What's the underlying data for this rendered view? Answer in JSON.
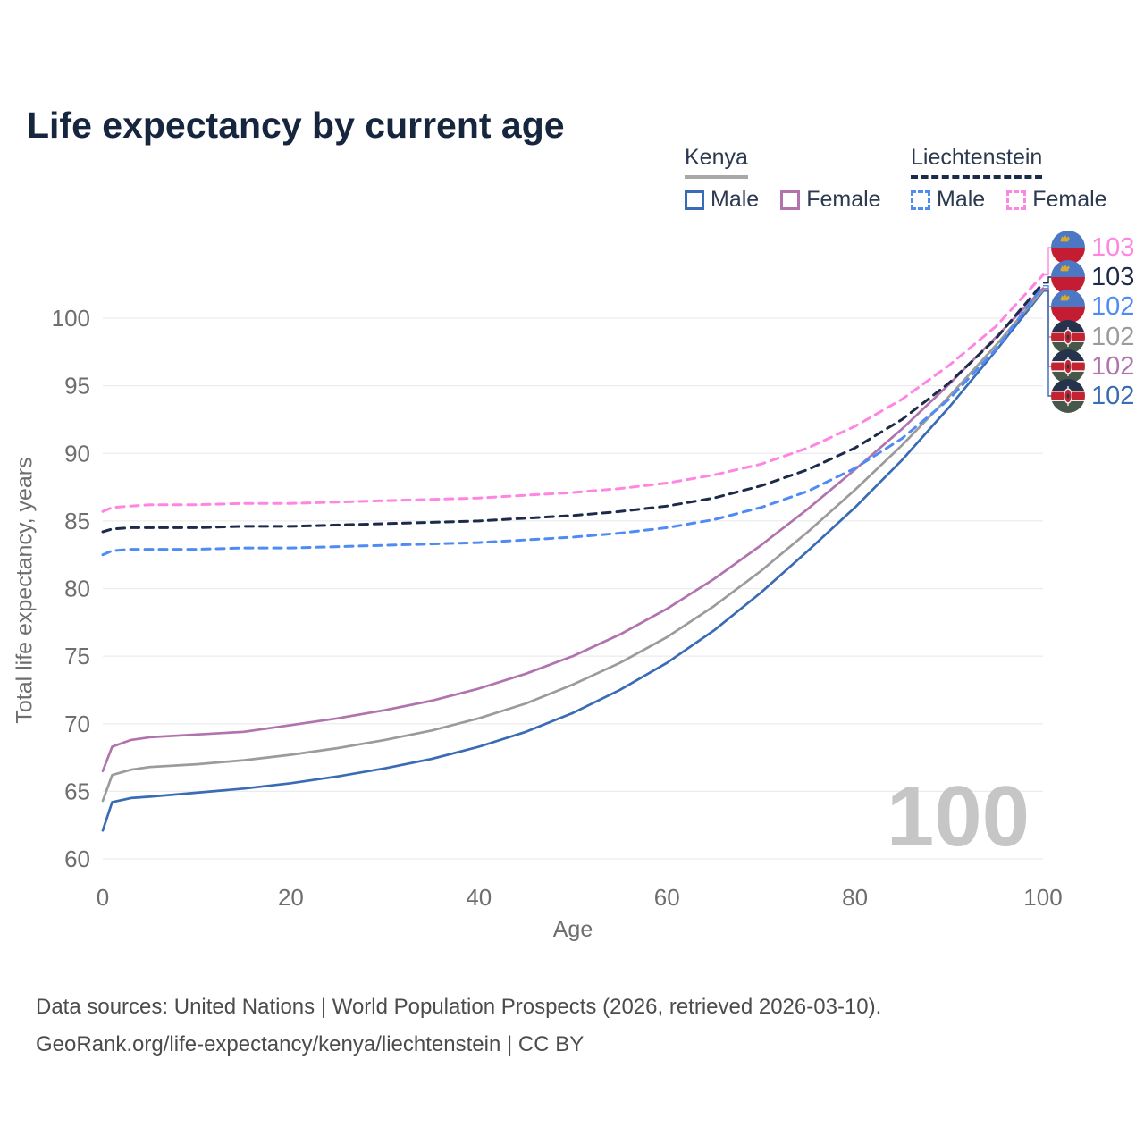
{
  "title": "Life expectancy by current age",
  "legend": {
    "groups": [
      {
        "label": "Kenya",
        "line_style": "solid",
        "underline_color": "#a8a8a8",
        "items": [
          {
            "label": "Male",
            "color": "#3a6bb5"
          },
          {
            "label": "Female",
            "color": "#b173ae"
          }
        ]
      },
      {
        "label": "Liechtenstein",
        "line_style": "dashed",
        "underline_color": "#1c2b4a",
        "items": [
          {
            "label": "Male",
            "color": "#4f8bf5"
          },
          {
            "label": "Female",
            "color": "#ff85e2"
          }
        ]
      }
    ]
  },
  "watermark": "100",
  "footer": {
    "line1": "Data sources: United Nations | World Population Prospects (2026, retrieved 2026-03-10).",
    "line2": "GeoRank.org/life-expectancy/kenya/liechtenstein | CC BY"
  },
  "colors": {
    "title": "#16263f",
    "grid": "#ececec",
    "axis_text": "#6e6e6e",
    "watermark": "#c6c6c6"
  },
  "chart_data": {
    "type": "line",
    "title": "Life expectancy by current age",
    "xlabel": "Age",
    "ylabel": "Total life expectancy, years",
    "xlim": [
      0,
      100
    ],
    "ylim": [
      60,
      103.5
    ],
    "xticks": [
      0,
      20,
      40,
      60,
      80,
      100
    ],
    "yticks": [
      60,
      65,
      70,
      75,
      80,
      85,
      90,
      95,
      100
    ],
    "grid": "horizontal",
    "legend_position": "top-right",
    "x": [
      0,
      1,
      3,
      5,
      10,
      15,
      20,
      25,
      30,
      35,
      40,
      45,
      50,
      55,
      60,
      65,
      70,
      75,
      80,
      85,
      90,
      95,
      100
    ],
    "series": [
      {
        "name": "Kenya Male",
        "country": "kenya",
        "sex": "male",
        "color": "#3a6bb5",
        "dash": false,
        "values": [
          62.1,
          64.2,
          64.5,
          64.6,
          64.9,
          65.2,
          65.6,
          66.1,
          66.7,
          67.4,
          68.3,
          69.4,
          70.8,
          72.5,
          74.5,
          76.9,
          79.7,
          82.8,
          86.0,
          89.5,
          93.4,
          97.6,
          102.0
        ]
      },
      {
        "name": "Kenya Both sexes",
        "country": "kenya",
        "sex": "both",
        "color": "#9b9b9b",
        "dash": false,
        "values": [
          64.3,
          66.2,
          66.6,
          66.8,
          67.0,
          67.3,
          67.7,
          68.2,
          68.8,
          69.5,
          70.4,
          71.5,
          72.9,
          74.5,
          76.4,
          78.7,
          81.3,
          84.2,
          87.3,
          90.6,
          94.2,
          98.0,
          102.1
        ]
      },
      {
        "name": "Kenya Female",
        "country": "kenya",
        "sex": "female",
        "color": "#b173ae",
        "dash": false,
        "values": [
          66.5,
          68.3,
          68.8,
          69.0,
          69.2,
          69.4,
          69.9,
          70.4,
          71.0,
          71.7,
          72.6,
          73.7,
          75.0,
          76.6,
          78.5,
          80.7,
          83.2,
          85.9,
          88.8,
          91.8,
          95.1,
          98.6,
          102.2
        ]
      },
      {
        "name": "Liechtenstein Male",
        "country": "liechtenstein",
        "sex": "male",
        "color": "#4f8bf5",
        "dash": true,
        "values": [
          82.5,
          82.8,
          82.9,
          82.9,
          82.9,
          83.0,
          83.0,
          83.1,
          83.2,
          83.3,
          83.4,
          83.6,
          83.8,
          84.1,
          84.5,
          85.1,
          86.0,
          87.2,
          88.9,
          91.1,
          94.0,
          97.7,
          102.4
        ]
      },
      {
        "name": "Liechtenstein Both sexes",
        "country": "liechtenstein",
        "sex": "both",
        "color": "#1c2b4a",
        "dash": true,
        "values": [
          84.2,
          84.4,
          84.5,
          84.5,
          84.5,
          84.6,
          84.6,
          84.7,
          84.8,
          84.9,
          85.0,
          85.2,
          85.4,
          85.7,
          86.1,
          86.7,
          87.6,
          88.8,
          90.4,
          92.5,
          95.2,
          98.5,
          102.6
        ]
      },
      {
        "name": "Liechtenstein Female",
        "country": "liechtenstein",
        "sex": "female",
        "color": "#ff85e2",
        "dash": true,
        "values": [
          85.7,
          86.0,
          86.1,
          86.2,
          86.2,
          86.3,
          86.3,
          86.4,
          86.5,
          86.6,
          86.7,
          86.9,
          87.1,
          87.4,
          87.8,
          88.4,
          89.2,
          90.4,
          92.0,
          94.0,
          96.5,
          99.4,
          103.2
        ]
      }
    ],
    "end_labels": [
      {
        "series": "Liechtenstein Female",
        "value": "103",
        "color": "#ff85e2",
        "flag": "liechtenstein"
      },
      {
        "series": "Liechtenstein Both sexes",
        "value": "103",
        "color": "#1c2b4a",
        "flag": "liechtenstein"
      },
      {
        "series": "Liechtenstein Male",
        "value": "102",
        "color": "#4f8bf5",
        "flag": "liechtenstein"
      },
      {
        "series": "Kenya Both sexes",
        "value": "102",
        "color": "#9b9b9b",
        "flag": "kenya"
      },
      {
        "series": "Kenya Female",
        "value": "102",
        "color": "#b173ae",
        "flag": "kenya"
      },
      {
        "series": "Kenya Male",
        "value": "102",
        "color": "#3a6bb5",
        "flag": "kenya"
      }
    ]
  }
}
